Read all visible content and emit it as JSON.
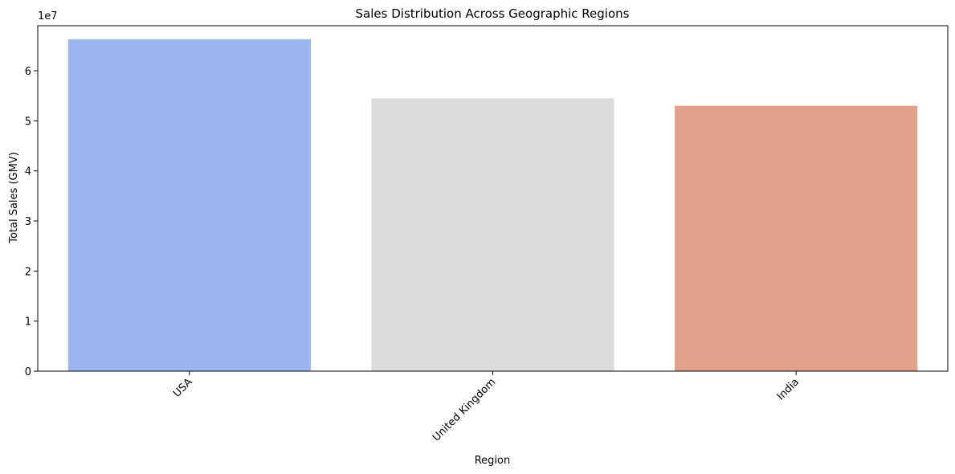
{
  "chart_data": {
    "type": "bar",
    "title": "Sales Distribution Across Geographic Regions",
    "xlabel": "Region",
    "ylabel": "Total Sales (GMV)",
    "y_scale_label": "1e7",
    "categories": [
      "USA",
      "United Kingdom",
      "India"
    ],
    "values": [
      66300000,
      54500000,
      53000000
    ],
    "bar_colors": [
      "#9bb5ee",
      "#dcdcdc",
      "#e2a18a"
    ],
    "ylim": [
      0,
      69000000
    ],
    "yticks": [
      0,
      10000000,
      20000000,
      30000000,
      40000000,
      50000000,
      60000000
    ],
    "ytick_labels": [
      "0",
      "1",
      "2",
      "3",
      "4",
      "5",
      "6"
    ],
    "xtick_rotation": -45,
    "grid": false,
    "legend": "none"
  }
}
